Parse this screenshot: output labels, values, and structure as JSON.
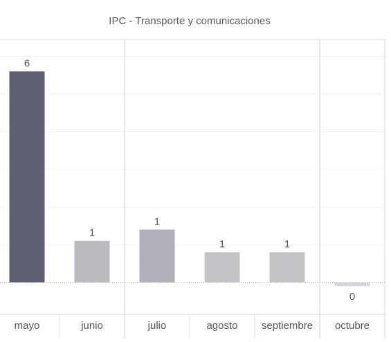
{
  "chart_data": {
    "type": "bar",
    "title": "IPC - Transporte y comunicaciones",
    "categories": [
      "mayo",
      "junio",
      "julio",
      "agosto",
      "septiembre",
      "octubre"
    ],
    "values": [
      5.6,
      1.1,
      1.4,
      0.8,
      0.8,
      -0.1
    ],
    "value_labels": [
      "6",
      "1",
      "1",
      "1",
      "1",
      "0"
    ],
    "bar_colors": [
      "#5c5f70",
      "#b9bac0",
      "#b0b0b8",
      "#c3c4c8",
      "#c3c4c8",
      "#d4d5d8"
    ],
    "ylim": [
      -0.85,
      6.45
    ],
    "grid": true,
    "xlabel": "",
    "ylabel": ""
  }
}
